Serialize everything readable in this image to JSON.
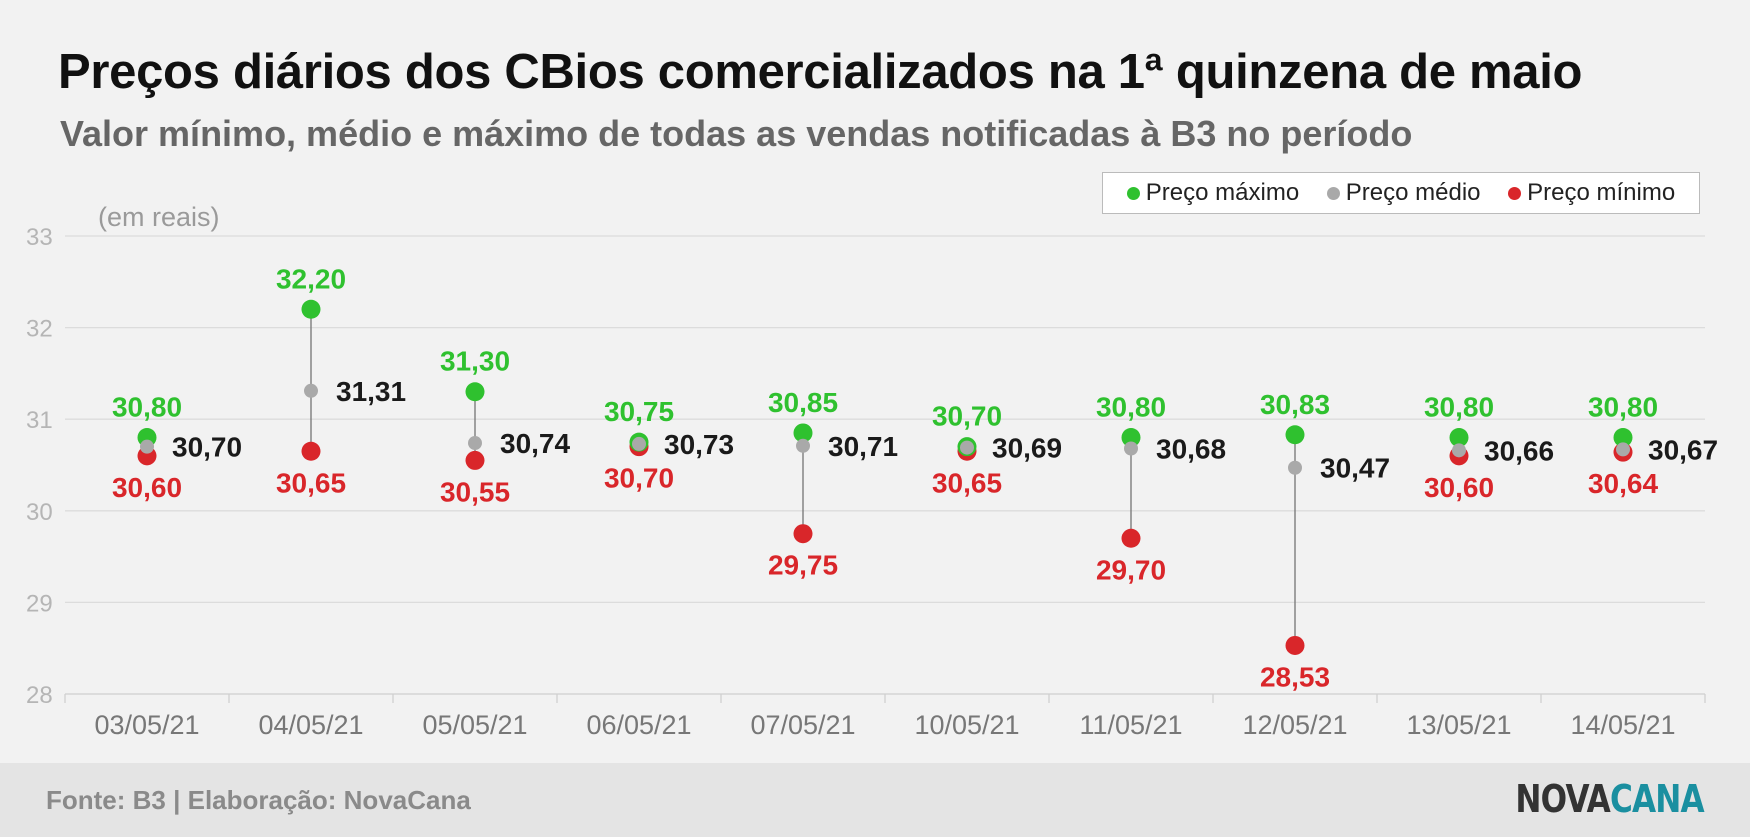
{
  "title": "Preços diários dos CBios comercializados na 1ª quinzena de maio",
  "subtitle": "Valor mínimo, médio e máximo de todas as vendas notificadas à B3 no período",
  "source": "Fonte: B3 | Elaboração: NovaCana",
  "logo": {
    "part1": "NOVA",
    "part2": "CANA"
  },
  "colors": {
    "max": "#2fc12f",
    "avg": "#a9a9a9",
    "min": "#d9262a",
    "avg_label": "#1a1a1a",
    "background": "#f2f2f2"
  },
  "chart_data": {
    "type": "scatter",
    "title": "Preços diários dos CBios comercializados na 1ª quinzena de maio",
    "subtitle": "Valor mínimo, médio e máximo de todas as vendas notificadas à B3 no período",
    "ylabel": "(em reais)",
    "xlabel": "",
    "ylim": [
      28,
      33
    ],
    "yticks": [
      "28",
      "29",
      "30",
      "31",
      "32",
      "33"
    ],
    "grid": true,
    "legend_position": "top-right",
    "categories": [
      "03/05/21",
      "04/05/21",
      "05/05/21",
      "06/05/21",
      "07/05/21",
      "10/05/21",
      "11/05/21",
      "12/05/21",
      "13/05/21",
      "14/05/21"
    ],
    "series": [
      {
        "name": "Preço máximo",
        "key": "max",
        "values": [
          30.8,
          32.2,
          31.3,
          30.75,
          30.85,
          30.7,
          30.8,
          30.83,
          30.8,
          30.8
        ],
        "labels": [
          "30,80",
          "32,20",
          "31,30",
          "30,75",
          "30,85",
          "30,70",
          "30,80",
          "30,83",
          "30,80",
          "30,80"
        ]
      },
      {
        "name": "Preço médio",
        "key": "avg",
        "values": [
          30.7,
          31.31,
          30.74,
          30.73,
          30.71,
          30.69,
          30.68,
          30.47,
          30.66,
          30.67
        ],
        "labels": [
          "30,70",
          "31,31",
          "30,74",
          "30,73",
          "30,71",
          "30,69",
          "30,68",
          "30,47",
          "30,66",
          "30,67"
        ]
      },
      {
        "name": "Preço mínimo",
        "key": "min",
        "values": [
          30.6,
          30.65,
          30.55,
          30.7,
          29.75,
          30.65,
          29.7,
          28.53,
          30.6,
          30.64
        ],
        "labels": [
          "30,60",
          "30,65",
          "30,55",
          "30,70",
          "29,75",
          "30,65",
          "29,70",
          "28,53",
          "30,60",
          "30,64"
        ]
      }
    ]
  }
}
